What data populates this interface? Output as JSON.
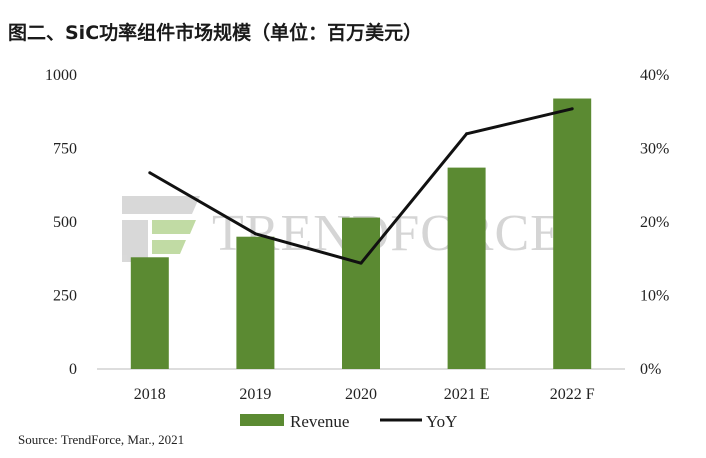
{
  "title": "图二、SiC功率组件市场规模（单位：百万美元）",
  "source": "Source: TrendForce, Mar., 2021",
  "watermark": "TRENDFORCE",
  "colors": {
    "bar": "#5b8a32",
    "line": "#111111",
    "axis": "#bbbbbb",
    "watermark": "#c8c8c8"
  },
  "chart_data": {
    "type": "bar",
    "categories": [
      "2018",
      "2019",
      "2020",
      "2021 E",
      "2022 F"
    ],
    "series": [
      {
        "name": "Revenue",
        "type": "bar",
        "axis": "left",
        "values": [
          380,
          450,
          515,
          685,
          920
        ]
      },
      {
        "name": "YoY",
        "type": "line",
        "axis": "right",
        "values": [
          26.7,
          18.4,
          14.4,
          32.0,
          35.4
        ]
      }
    ],
    "yticks_left": [
      "0",
      "250",
      "500",
      "750",
      "1000"
    ],
    "ylim_left": [
      0,
      1000
    ],
    "yticks_right": [
      "0%",
      "10%",
      "20%",
      "30%",
      "40%"
    ],
    "ylim_right": [
      0,
      40
    ],
    "legend_position": "bottom",
    "grid": false
  }
}
